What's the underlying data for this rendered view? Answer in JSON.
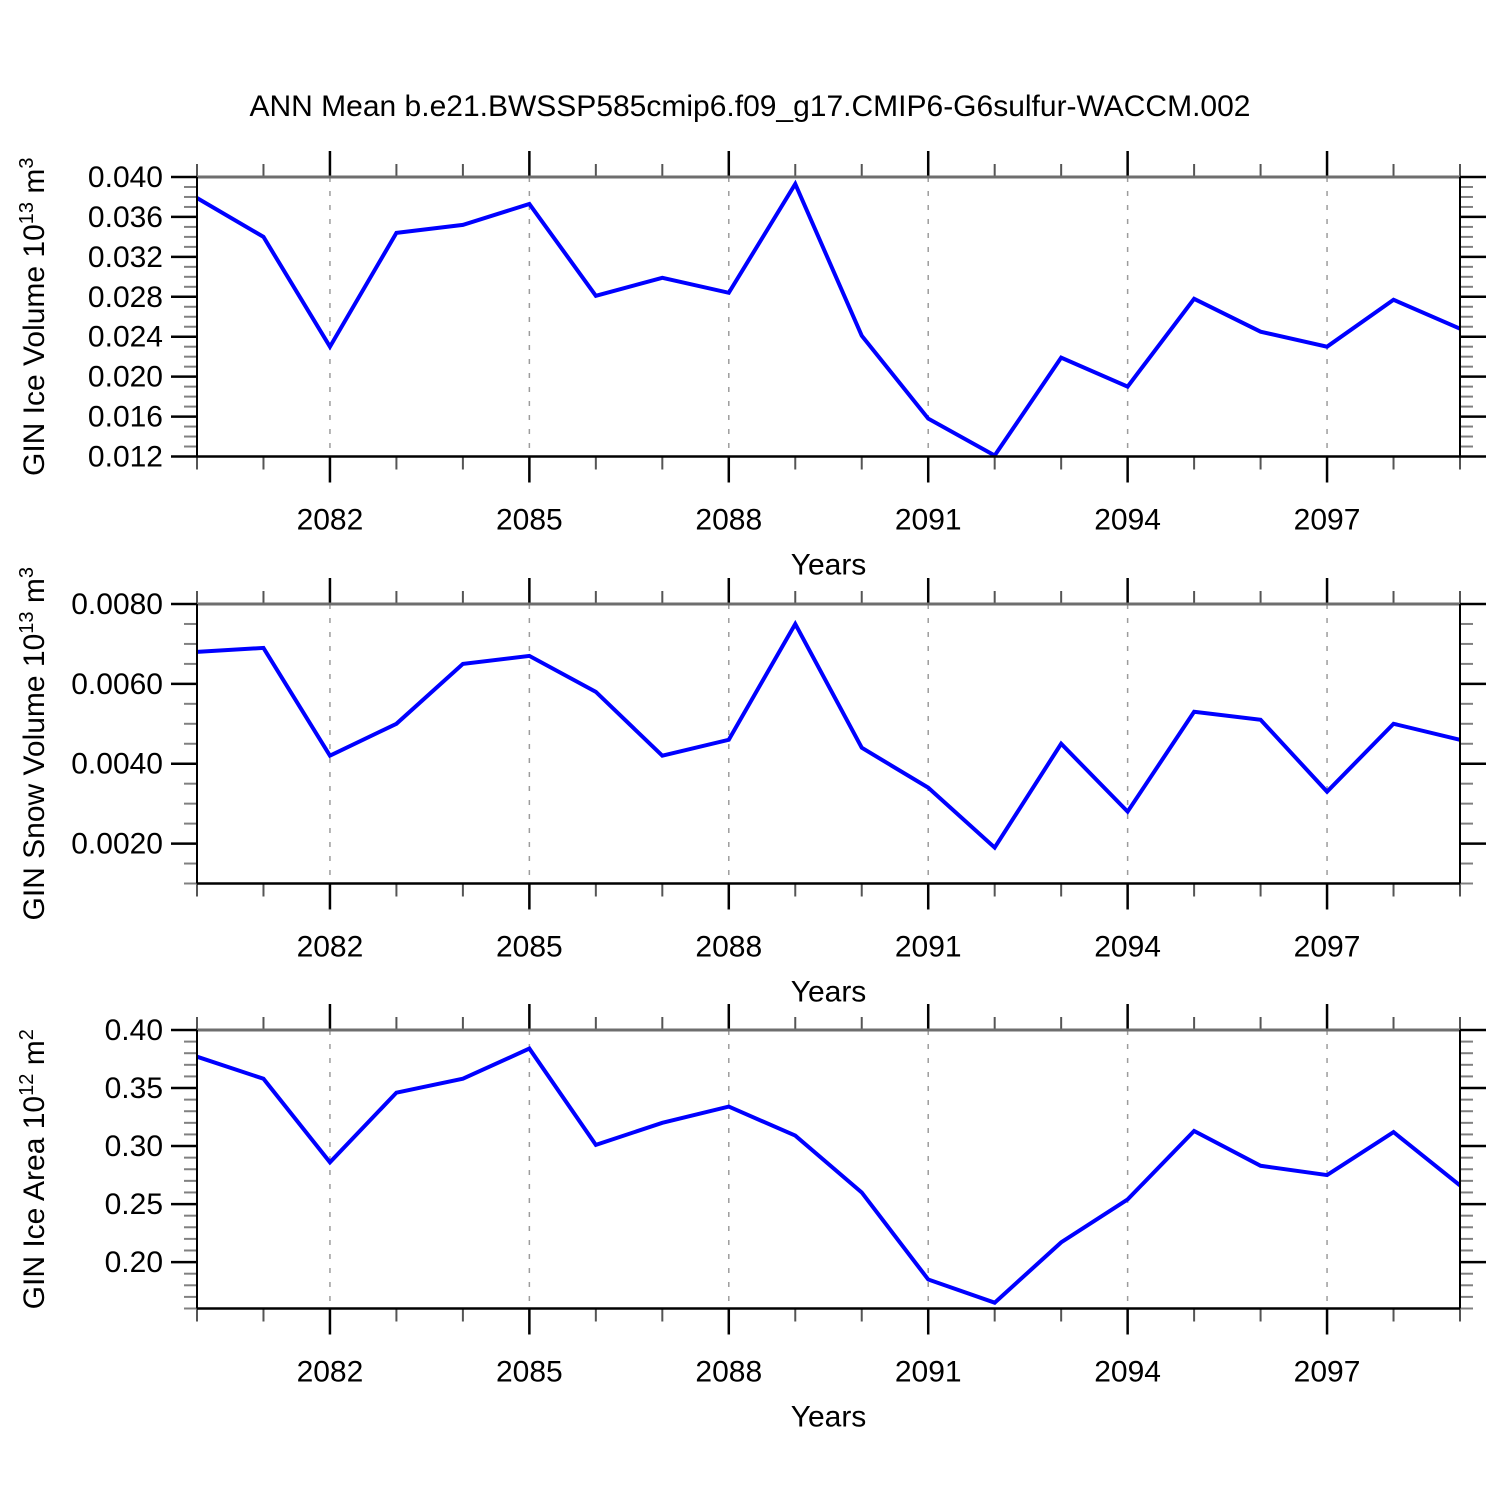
{
  "title": "ANN Mean b.e21.BWSSP585cmip6.f09_g17.CMIP6-G6sulfur-WACCM.002",
  "chart_data": [
    {
      "type": "line",
      "title": "",
      "xlabel": "Years",
      "ylabel": "GIN Ice Volume 10^13 m^3",
      "ylabel_parts": [
        [
          "GIN Ice Volume 10",
          false
        ],
        [
          "13",
          true
        ],
        [
          " m",
          false
        ],
        [
          "3",
          true
        ]
      ],
      "line_color": "#0000ff",
      "x": [
        2080,
        2081,
        2082,
        2083,
        2084,
        2085,
        2086,
        2087,
        2088,
        2089,
        2090,
        2091,
        2092,
        2093,
        2094,
        2095,
        2096,
        2097,
        2098,
        2099
      ],
      "values": [
        0.0379,
        0.034,
        0.023,
        0.0344,
        0.0352,
        0.0373,
        0.0281,
        0.0299,
        0.0284,
        0.0393,
        0.0241,
        0.0158,
        0.0121,
        0.0219,
        0.019,
        0.0278,
        0.0245,
        0.023,
        0.0277,
        0.0248
      ],
      "xlim": [
        2080,
        2099
      ],
      "ylim": [
        0.012,
        0.04
      ],
      "xticks_major": [
        2082,
        2085,
        2088,
        2091,
        2094,
        2097
      ],
      "xtick_labels": [
        "2082",
        "2085",
        "2088",
        "2091",
        "2094",
        "2097"
      ],
      "xticks_minor_step": 1,
      "yticks_major": [
        0.012,
        0.016,
        0.02,
        0.024,
        0.028,
        0.032,
        0.036,
        0.04
      ],
      "ytick_labels": [
        "0.012",
        "0.016",
        "0.020",
        "0.024",
        "0.028",
        "0.032",
        "0.036",
        "0.040"
      ],
      "yticks_minor_step": 0.001,
      "grid": "vertical-dashed"
    },
    {
      "type": "line",
      "title": "",
      "xlabel": "Years",
      "ylabel": "GIN Snow Volume 10^13 m^3",
      "ylabel_parts": [
        [
          "GIN Snow Volume 10",
          false
        ],
        [
          "13",
          true
        ],
        [
          " m",
          false
        ],
        [
          "3",
          true
        ]
      ],
      "line_color": "#0000ff",
      "x": [
        2080,
        2081,
        2082,
        2083,
        2084,
        2085,
        2086,
        2087,
        2088,
        2089,
        2090,
        2091,
        2092,
        2093,
        2094,
        2095,
        2096,
        2097,
        2098,
        2099
      ],
      "values": [
        0.0068,
        0.0069,
        0.0042,
        0.005,
        0.0065,
        0.0067,
        0.0058,
        0.0042,
        0.0046,
        0.0075,
        0.0044,
        0.0034,
        0.0019,
        0.0045,
        0.0028,
        0.0053,
        0.0051,
        0.0033,
        0.005,
        0.0046
      ],
      "xlim": [
        2080,
        2099
      ],
      "ylim": [
        0.001,
        0.008
      ],
      "xticks_major": [
        2082,
        2085,
        2088,
        2091,
        2094,
        2097
      ],
      "xtick_labels": [
        "2082",
        "2085",
        "2088",
        "2091",
        "2094",
        "2097"
      ],
      "xticks_minor_step": 1,
      "yticks_major": [
        0.002,
        0.004,
        0.006,
        0.008
      ],
      "ytick_labels": [
        "0.0020",
        "0.0040",
        "0.0060",
        "0.0080"
      ],
      "yticks_minor_step": 0.0005,
      "grid": "vertical-dashed"
    },
    {
      "type": "line",
      "title": "",
      "xlabel": "Years",
      "ylabel": "GIN Ice Area 10^12 m^2",
      "ylabel_parts": [
        [
          "GIN Ice Area 10",
          false
        ],
        [
          "12",
          true
        ],
        [
          " m",
          false
        ],
        [
          "2",
          true
        ]
      ],
      "line_color": "#0000ff",
      "x": [
        2080,
        2081,
        2082,
        2083,
        2084,
        2085,
        2086,
        2087,
        2088,
        2089,
        2090,
        2091,
        2092,
        2093,
        2094,
        2095,
        2096,
        2097,
        2098,
        2099
      ],
      "values": [
        0.377,
        0.358,
        0.286,
        0.346,
        0.358,
        0.384,
        0.301,
        0.32,
        0.334,
        0.309,
        0.26,
        0.185,
        0.165,
        0.217,
        0.254,
        0.313,
        0.283,
        0.275,
        0.312,
        0.266
      ],
      "xlim": [
        2080,
        2099
      ],
      "ylim": [
        0.16,
        0.4
      ],
      "xticks_major": [
        2082,
        2085,
        2088,
        2091,
        2094,
        2097
      ],
      "xtick_labels": [
        "2082",
        "2085",
        "2088",
        "2091",
        "2094",
        "2097"
      ],
      "xticks_minor_step": 1,
      "yticks_major": [
        0.2,
        0.25,
        0.3,
        0.35,
        0.4
      ],
      "ytick_labels": [
        "0.20",
        "0.25",
        "0.30",
        "0.35",
        "0.40"
      ],
      "yticks_minor_step": 0.01,
      "grid": "vertical-dashed"
    }
  ]
}
